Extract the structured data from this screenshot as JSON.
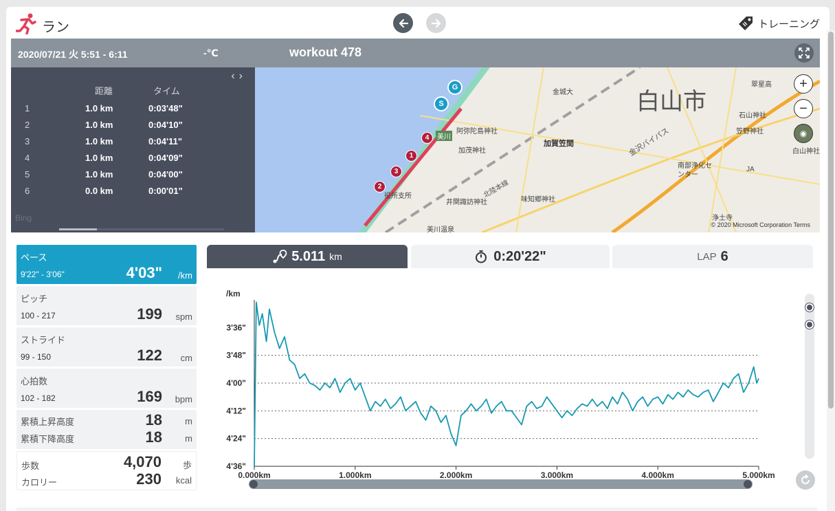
{
  "app": {
    "title": "ラン",
    "training_label": "トレーニング"
  },
  "colors": {
    "accent": "#1aa0c8",
    "runner": "#e0405a",
    "route": "#e0405a",
    "line": "#1798b2"
  },
  "header": {
    "date": "2020/07/21 火 5:51 - 6:11",
    "temperature": "-℃",
    "title": "workout 478"
  },
  "laps": {
    "headers": {
      "distance": "距離",
      "time": "タイム"
    },
    "rows": [
      {
        "no": "1",
        "distance": "1.0 km",
        "time": "0:03'48\""
      },
      {
        "no": "2",
        "distance": "1.0 km",
        "time": "0:04'10\""
      },
      {
        "no": "3",
        "distance": "1.0 km",
        "time": "0:04'11\""
      },
      {
        "no": "4",
        "distance": "1.0 km",
        "time": "0:04'09\""
      },
      {
        "no": "5",
        "distance": "1.0 km",
        "time": "0:04'00\""
      },
      {
        "no": "6",
        "distance": "0.0 km",
        "time": "0:00'01\""
      }
    ],
    "bing": "Bing"
  },
  "map": {
    "city": "白山市",
    "labels": [
      "金城大",
      "阿弥陀島神社",
      "加賀笠間",
      "加茂神社",
      "美川",
      "金沢バイパス",
      "北陸本線",
      "味知郷神社",
      "井関諏訪神社",
      "役所支所",
      "美川温泉",
      "南部浄化センター",
      "浄土寺",
      "石山神社",
      "笠野神社",
      "白山神社",
      "翠星高",
      "JA"
    ],
    "markers": [
      "G",
      "S",
      "1",
      "2",
      "3",
      "4"
    ],
    "copyright": "© 2020 Microsoft Corporation Terms"
  },
  "metrics": {
    "pace": {
      "label": "ペース",
      "range": "9'22\" - 3'06\"",
      "value": "4'03\"",
      "unit": "/km"
    },
    "pitch": {
      "label": "ピッチ",
      "range": "100 - 217",
      "value": "199",
      "unit": "spm"
    },
    "stride": {
      "label": "ストライド",
      "range": "99 - 150",
      "value": "122",
      "unit": "cm"
    },
    "heart": {
      "label": "心拍数",
      "range": "102 - 182",
      "value": "169",
      "unit": "bpm"
    },
    "elevation": {
      "up_label": "累積上昇高度",
      "up_value": "18",
      "up_unit": "m",
      "down_label": "累積下降高度",
      "down_value": "18",
      "down_unit": "m"
    },
    "steps": {
      "steps_label": "歩数",
      "steps_value": "4,070",
      "steps_unit": "歩",
      "cal_label": "カロリー",
      "cal_value": "230",
      "cal_unit": "kcal"
    }
  },
  "tabs": {
    "distance": {
      "value": "5.011",
      "unit": "km"
    },
    "time": {
      "value": "0:20'22\""
    },
    "lap": {
      "label": "LAP",
      "value": "6"
    }
  },
  "chart_data": {
    "type": "line",
    "ylabel": "/km",
    "y_tick_labels": [
      "3'36\"",
      "3'48\"",
      "4'00\"",
      "4'12\"",
      "4'24\"",
      "4'36\""
    ],
    "y_ticks_sec": [
      216,
      228,
      240,
      252,
      264,
      276
    ],
    "ylim_sec": [
      276,
      204
    ],
    "x_tick_labels": [
      "0.000km",
      "1.000km",
      "2.000km",
      "3.000km",
      "4.000km",
      "5.000km"
    ],
    "x_ticks_km": [
      0,
      1,
      2,
      3,
      4,
      5
    ],
    "xlim_km": [
      0,
      5
    ],
    "series": [
      {
        "x_km": [
          0.0,
          0.02,
          0.05,
          0.08,
          0.12,
          0.15,
          0.2,
          0.25,
          0.3,
          0.35,
          0.4,
          0.45,
          0.5,
          0.55,
          0.6,
          0.65,
          0.7,
          0.75,
          0.8,
          0.85,
          0.9,
          0.95,
          1.0,
          1.05,
          1.1,
          1.15,
          1.2,
          1.25,
          1.3,
          1.35,
          1.4,
          1.45,
          1.5,
          1.55,
          1.6,
          1.65,
          1.7,
          1.75,
          1.8,
          1.85,
          1.9,
          1.95,
          2.0,
          2.05,
          2.1,
          2.15,
          2.2,
          2.25,
          2.3,
          2.35,
          2.4,
          2.45,
          2.5,
          2.55,
          2.6,
          2.65,
          2.7,
          2.75,
          2.8,
          2.85,
          2.9,
          2.95,
          3.0,
          3.05,
          3.1,
          3.15,
          3.2,
          3.25,
          3.3,
          3.35,
          3.4,
          3.45,
          3.5,
          3.55,
          3.6,
          3.65,
          3.7,
          3.75,
          3.8,
          3.85,
          3.9,
          3.95,
          4.0,
          4.05,
          4.1,
          4.15,
          4.2,
          4.25,
          4.3,
          4.35,
          4.4,
          4.45,
          4.5,
          4.55,
          4.6,
          4.65,
          4.7,
          4.75,
          4.8,
          4.85,
          4.9,
          4.95,
          4.98,
          5.0
        ],
        "pace_sec": [
          276,
          205,
          215,
          210,
          222,
          208,
          218,
          225,
          220,
          230,
          232,
          238,
          236,
          240,
          241,
          243,
          240,
          242,
          238,
          244,
          240,
          238,
          243,
          240,
          246,
          252,
          248,
          250,
          247,
          251,
          249,
          246,
          252,
          250,
          248,
          253,
          256,
          250,
          252,
          257,
          254,
          262,
          267,
          254,
          252,
          249,
          252,
          250,
          247,
          253,
          250,
          248,
          252,
          252,
          255,
          258,
          250,
          248,
          251,
          250,
          246,
          249,
          252,
          255,
          252,
          254,
          251,
          249,
          250,
          247,
          250,
          248,
          251,
          246,
          249,
          244,
          247,
          252,
          248,
          246,
          250,
          247,
          246,
          249,
          245,
          247,
          244,
          246,
          243,
          245,
          246,
          244,
          243,
          248,
          244,
          240,
          242,
          238,
          236,
          244,
          240,
          233,
          240,
          238,
          226,
          240
        ]
      }
    ]
  }
}
